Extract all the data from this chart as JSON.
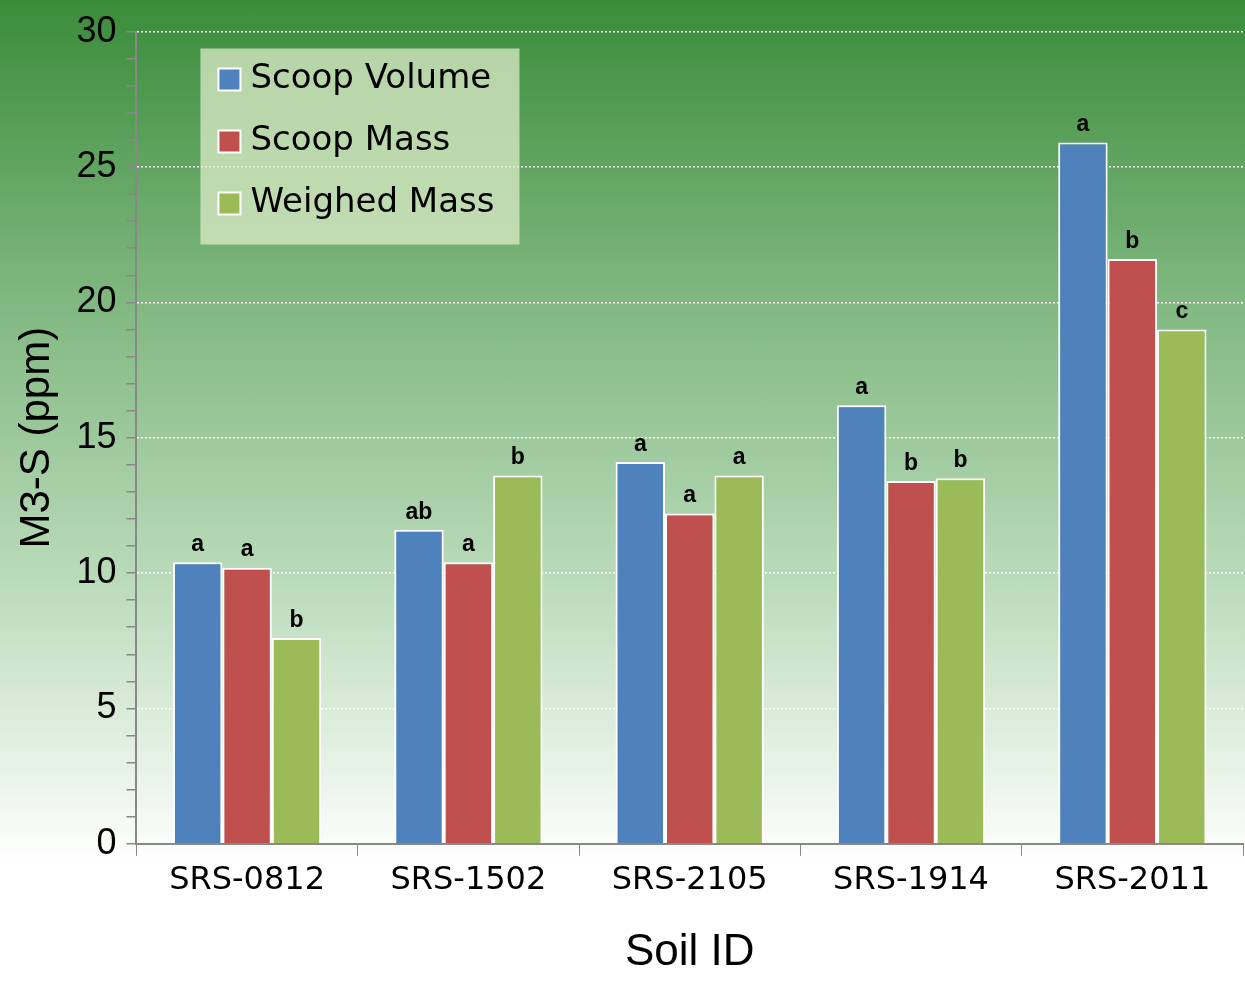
{
  "chart_data": {
    "type": "bar",
    "xlabel": "Soil ID",
    "ylabel": "M3-S (ppm)",
    "categories": [
      "SRS-0812",
      "SRS-1502",
      "SRS-2105",
      "SRS-1914",
      "SRS-2011"
    ],
    "series": [
      {
        "name": "Scoop Volume",
        "color": "#4f81bd",
        "values": [
          10.4,
          11.6,
          14.1,
          16.2,
          25.9
        ],
        "value_labels": [
          "a",
          "ab",
          "a",
          "a",
          "a"
        ]
      },
      {
        "name": "Scoop Mass",
        "color": "#c0504d",
        "values": [
          10.2,
          10.4,
          12.2,
          13.4,
          21.6
        ],
        "value_labels": [
          "a",
          "a",
          "a",
          "b",
          "b"
        ]
      },
      {
        "name": "Weighed Mass",
        "color": "#9bbb59",
        "values": [
          7.6,
          13.6,
          13.6,
          13.5,
          19.0
        ],
        "value_labels": [
          "b",
          "b",
          "a",
          "b",
          "c"
        ]
      }
    ],
    "ylim": [
      0,
      30
    ],
    "yticks": [
      0,
      {
        "value": 1,
        "label": null
      },
      {
        "value": 2,
        "label": null
      },
      {
        "value": 3,
        "label": null
      },
      {
        "value": 4,
        "label": null
      },
      5,
      {
        "value": 6,
        "label": null
      },
      {
        "value": 7,
        "label": null
      },
      {
        "value": 8,
        "label": null
      },
      {
        "value": 9,
        "label": null
      },
      10,
      {
        "value": 11,
        "label": null
      },
      {
        "value": 12,
        "label": null
      },
      {
        "value": 13,
        "label": null
      },
      {
        "value": 14,
        "label": null
      },
      15,
      {
        "value": 16,
        "label": null
      },
      {
        "value": 17,
        "label": null
      },
      {
        "value": 18,
        "label": null
      },
      {
        "value": 19,
        "label": null
      },
      20,
      {
        "value": 21,
        "label": null
      },
      {
        "value": 22,
        "label": null
      },
      {
        "value": 23,
        "label": null
      },
      {
        "value": 24,
        "label": null
      },
      25,
      {
        "value": 26,
        "label": null
      },
      {
        "value": 27,
        "label": null
      },
      {
        "value": 28,
        "label": null
      },
      {
        "value": 29,
        "label": null
      },
      30
    ],
    "grid": "y",
    "legend": "top left"
  }
}
